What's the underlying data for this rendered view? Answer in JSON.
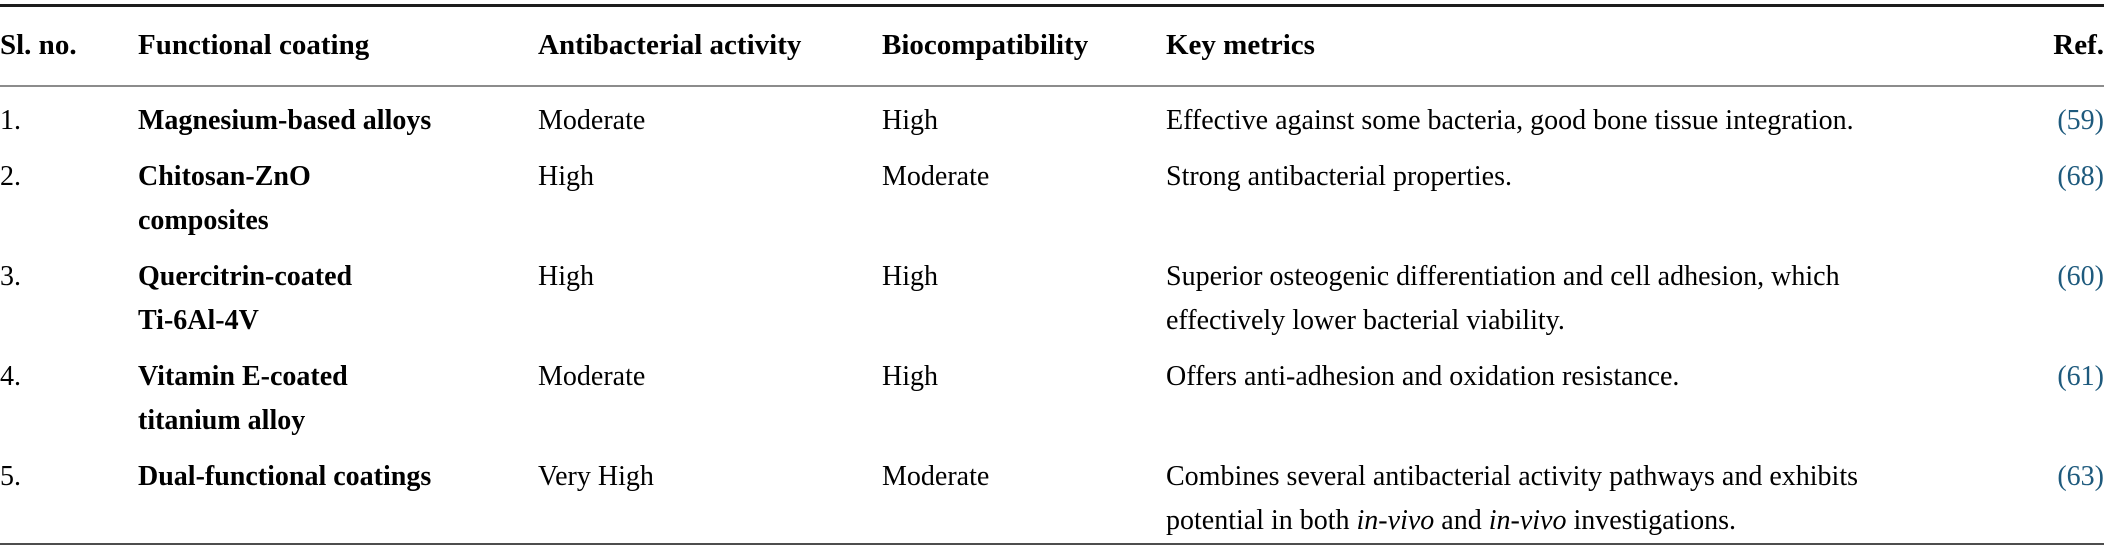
{
  "table": {
    "columns": [
      {
        "label": "Sl. no."
      },
      {
        "label": "Functional coating"
      },
      {
        "label": "Antibacterial activity"
      },
      {
        "label": "Biocompatibility"
      },
      {
        "label": "Key metrics"
      },
      {
        "label": "Ref."
      }
    ],
    "rows": [
      {
        "sl_no": "1.",
        "coating_lines": [
          "Magnesium-based alloys"
        ],
        "antibacterial": "Moderate",
        "biocompatibility": "High",
        "key_metrics_lines": [
          [
            {
              "t": "Effective against some bacteria, good bone tissue integration."
            }
          ]
        ],
        "ref": "(59)"
      },
      {
        "sl_no": "2.",
        "coating_lines": [
          "Chitosan-ZnO",
          "composites"
        ],
        "antibacterial": "High",
        "biocompatibility": "Moderate",
        "key_metrics_lines": [
          [
            {
              "t": "Strong antibacterial properties."
            }
          ]
        ],
        "ref": "(68)"
      },
      {
        "sl_no": "3.",
        "coating_lines": [
          "Quercitrin-coated",
          "Ti-6Al-4V"
        ],
        "antibacterial": "High",
        "biocompatibility": "High",
        "key_metrics_lines": [
          [
            {
              "t": "Superior osteogenic differentiation and cell adhesion, which"
            }
          ],
          [
            {
              "t": "effectively lower bacterial viability."
            }
          ]
        ],
        "ref": "(60)"
      },
      {
        "sl_no": "4.",
        "coating_lines": [
          "Vitamin E-coated",
          "titanium alloy"
        ],
        "antibacterial": "Moderate",
        "biocompatibility": "High",
        "key_metrics_lines": [
          [
            {
              "t": "Offers anti-adhesion and oxidation resistance."
            }
          ]
        ],
        "ref": "(61)"
      },
      {
        "sl_no": "5.",
        "coating_lines": [
          "Dual-functional coatings"
        ],
        "antibacterial": "Very High",
        "biocompatibility": "Moderate",
        "key_metrics_lines": [
          [
            {
              "t": "Combines several antibacterial activity pathways and exhibits"
            }
          ],
          [
            {
              "t": "potential in both "
            },
            {
              "t": "in-vivo",
              "i": true
            },
            {
              "t": " and "
            },
            {
              "t": "in-vivo",
              "i": true
            },
            {
              "t": " investigations."
            }
          ]
        ],
        "ref": "(63)"
      }
    ]
  },
  "colors": {
    "text": "#000000",
    "ref_link": "#1e5a7d",
    "top_rule": "#1c1c1c",
    "header_rule": "#8c8c8c",
    "bottom_rule": "#4d4d4d",
    "background": "#ffffff"
  }
}
